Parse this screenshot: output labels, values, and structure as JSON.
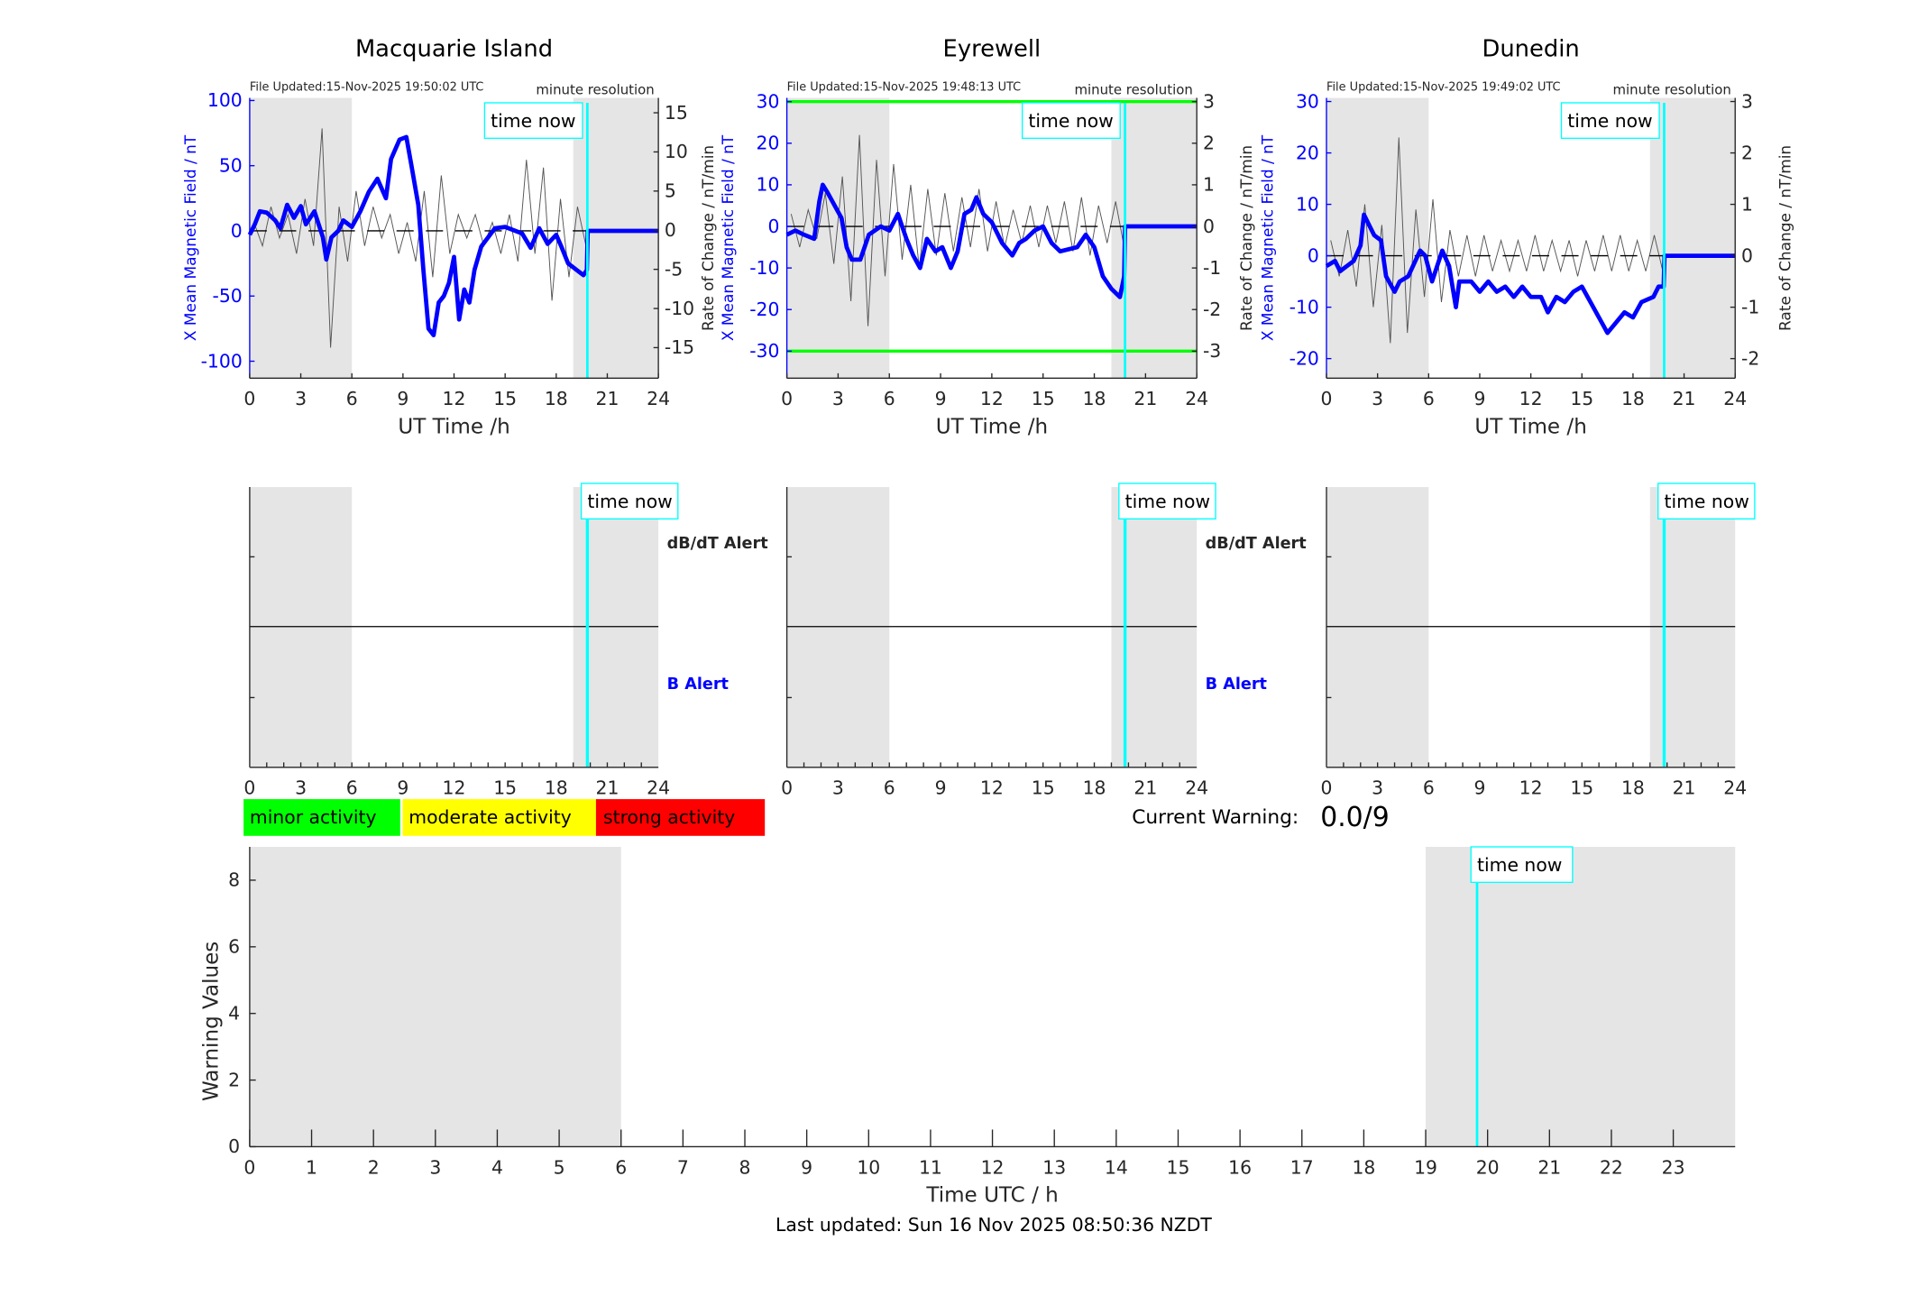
{
  "colors": {
    "field": "#0000ff",
    "rate": "#555555",
    "shade": "#e5e5e5",
    "time_now": "#00ffff",
    "threshold": "#00ff00"
  },
  "top_panels": [
    {
      "title": "Macquarie Island",
      "file_updated": "File Updated:15-Nov-2025 19:50:02 UTC",
      "resolution": "minute resolution",
      "time_now_label": "time now",
      "xlabel": "UT Time /h",
      "ylabel_left": "X Mean Magnetic Field / nT",
      "ylabel_right": "Rate of Change / nT/min",
      "xlim": [
        0,
        24
      ],
      "ylim_left": [
        -113,
        102
      ],
      "ylim_right": [
        -18.9,
        16.9
      ],
      "xticks": [
        "0",
        "3",
        "6",
        "9",
        "12",
        "15",
        "18",
        "21",
        "24"
      ],
      "yticks_left": [
        "-100",
        "-50",
        "0",
        "50",
        "100"
      ],
      "yticks_right": [
        "-15",
        "-10",
        "-5",
        "0",
        "5",
        "10",
        "15"
      ],
      "shaded_hours": [
        [
          0,
          6
        ],
        [
          19,
          24
        ]
      ],
      "time_now_hour": 19.83,
      "thresholds": [],
      "field_series": [
        [
          0,
          -3
        ],
        [
          0.3,
          5
        ],
        [
          0.6,
          15
        ],
        [
          1,
          14
        ],
        [
          1.5,
          8
        ],
        [
          1.8,
          2
        ],
        [
          2.2,
          20
        ],
        [
          2.6,
          10
        ],
        [
          3,
          19
        ],
        [
          3.3,
          5
        ],
        [
          3.8,
          15
        ],
        [
          4.3,
          -5
        ],
        [
          4.5,
          -22
        ],
        [
          4.8,
          -5
        ],
        [
          5.2,
          0
        ],
        [
          5.5,
          8
        ],
        [
          6,
          3
        ],
        [
          6.5,
          15
        ],
        [
          7,
          30
        ],
        [
          7.5,
          40
        ],
        [
          8,
          25
        ],
        [
          8.3,
          55
        ],
        [
          8.8,
          70
        ],
        [
          9.2,
          72
        ],
        [
          9.5,
          50
        ],
        [
          9.9,
          20
        ],
        [
          10.2,
          -30
        ],
        [
          10.5,
          -75
        ],
        [
          10.8,
          -80
        ],
        [
          11.1,
          -55
        ],
        [
          11.4,
          -50
        ],
        [
          11.7,
          -40
        ],
        [
          12,
          -20
        ],
        [
          12.3,
          -68
        ],
        [
          12.6,
          -45
        ],
        [
          12.9,
          -55
        ],
        [
          13.2,
          -30
        ],
        [
          13.6,
          -12
        ],
        [
          14,
          -5
        ],
        [
          14.4,
          2
        ],
        [
          15,
          3
        ],
        [
          16,
          -2
        ],
        [
          16.5,
          -13
        ],
        [
          17,
          2
        ],
        [
          17.5,
          -10
        ],
        [
          18,
          -3
        ],
        [
          18.3,
          -12
        ],
        [
          18.7,
          -25
        ],
        [
          19.2,
          -30
        ],
        [
          19.6,
          -34
        ],
        [
          19.8,
          -30
        ],
        [
          19.85,
          0
        ],
        [
          24,
          0
        ]
      ],
      "rate_series": [
        1,
        -2,
        3,
        -1,
        2,
        -3,
        4,
        -2,
        13,
        -15,
        3,
        -4,
        5,
        -2,
        3,
        -1,
        2,
        -3,
        1,
        -4,
        5,
        -6,
        7,
        -3,
        2,
        -1,
        2,
        -2,
        1,
        -3,
        2,
        -4,
        9,
        -3,
        8,
        -9,
        4,
        -6,
        3,
        -2
      ]
    },
    {
      "title": "Eyrewell",
      "file_updated": "File Updated:15-Nov-2025 19:48:13 UTC",
      "resolution": "minute resolution",
      "time_now_label": "time now",
      "xlabel": "UT Time /h",
      "ylabel_left": "X Mean Magnetic Field / nT",
      "ylabel_right": "Rate of Change / nT/min",
      "xlim": [
        0,
        24
      ],
      "ylim_left": [
        -36.5,
        30.9
      ],
      "ylim_right": [
        -3.65,
        3.09
      ],
      "xticks": [
        "0",
        "3",
        "6",
        "9",
        "12",
        "15",
        "18",
        "21",
        "24"
      ],
      "yticks_left": [
        "-30",
        "-20",
        "-10",
        "0",
        "10",
        "20",
        "30"
      ],
      "yticks_right": [
        "-3",
        "-2",
        "-1",
        "0",
        "1",
        "2",
        "3"
      ],
      "shaded_hours": [
        [
          0,
          6
        ],
        [
          19,
          24
        ]
      ],
      "time_now_hour": 19.8,
      "thresholds": [
        30,
        -30
      ],
      "field_series": [
        [
          0,
          -2
        ],
        [
          0.5,
          -1
        ],
        [
          1,
          -2
        ],
        [
          1.6,
          -3
        ],
        [
          1.9,
          6
        ],
        [
          2.1,
          10
        ],
        [
          2.4,
          8
        ],
        [
          2.8,
          5
        ],
        [
          3.2,
          2
        ],
        [
          3.5,
          -5
        ],
        [
          3.8,
          -8
        ],
        [
          4.3,
          -8
        ],
        [
          4.8,
          -2
        ],
        [
          5.5,
          0
        ],
        [
          6,
          -1
        ],
        [
          6.5,
          3
        ],
        [
          7,
          -3
        ],
        [
          7.4,
          -7
        ],
        [
          7.8,
          -10
        ],
        [
          8.2,
          -3
        ],
        [
          8.7,
          -6
        ],
        [
          9.1,
          -5
        ],
        [
          9.6,
          -10
        ],
        [
          10,
          -6
        ],
        [
          10.4,
          3
        ],
        [
          10.8,
          4
        ],
        [
          11.1,
          7
        ],
        [
          11.5,
          3
        ],
        [
          12,
          1
        ],
        [
          12.6,
          -4
        ],
        [
          13.2,
          -7
        ],
        [
          13.6,
          -4
        ],
        [
          14,
          -3
        ],
        [
          14.5,
          -1
        ],
        [
          15,
          0
        ],
        [
          15.5,
          -4
        ],
        [
          16,
          -6
        ],
        [
          17,
          -5
        ],
        [
          17.5,
          -2
        ],
        [
          18,
          -5
        ],
        [
          18.5,
          -12
        ],
        [
          19,
          -15
        ],
        [
          19.5,
          -17
        ],
        [
          19.75,
          -12
        ],
        [
          19.8,
          0
        ],
        [
          24,
          0
        ]
      ],
      "rate_series": [
        0.3,
        -0.5,
        0.4,
        -0.3,
        0.8,
        -0.9,
        1.2,
        -1.8,
        2.2,
        -2.4,
        1.6,
        -1.2,
        1.5,
        -0.8,
        1.0,
        -1.0,
        0.9,
        -0.7,
        0.8,
        -0.6,
        0.7,
        -0.5,
        0.9,
        -0.6,
        0.6,
        -0.5,
        0.4,
        -0.4,
        0.5,
        -0.5,
        0.5,
        -0.4,
        0.6,
        -0.6,
        0.7,
        -0.7,
        0.5,
        -0.4,
        0.6,
        -0.5
      ]
    },
    {
      "title": "Dunedin",
      "file_updated": "File Updated:15-Nov-2025 19:49:02 UTC",
      "resolution": "minute resolution",
      "time_now_label": "time now",
      "xlabel": "UT Time /h",
      "ylabel_left": "X Mean Magnetic Field / nT",
      "ylabel_right": "Rate of Change / nT/min",
      "xlim": [
        0,
        24
      ],
      "ylim_left": [
        -23.8,
        30.7
      ],
      "ylim_right": [
        -2.38,
        3.07
      ],
      "xticks": [
        "0",
        "3",
        "6",
        "9",
        "12",
        "15",
        "18",
        "21",
        "24"
      ],
      "yticks_left": [
        "-20",
        "-10",
        "0",
        "10",
        "20",
        "30"
      ],
      "yticks_right": [
        "-2",
        "-1",
        "0",
        "1",
        "2",
        "3"
      ],
      "shaded_hours": [
        [
          0,
          6
        ],
        [
          19,
          24
        ]
      ],
      "time_now_hour": 19.83,
      "thresholds": [],
      "field_series": [
        [
          0,
          -2
        ],
        [
          0.5,
          -1
        ],
        [
          0.8,
          -3
        ],
        [
          1.2,
          -2
        ],
        [
          1.6,
          -1
        ],
        [
          2,
          2
        ],
        [
          2.2,
          8
        ],
        [
          2.5,
          6
        ],
        [
          2.8,
          4
        ],
        [
          3.2,
          3
        ],
        [
          3.5,
          -4
        ],
        [
          4,
          -7
        ],
        [
          4.3,
          -5
        ],
        [
          4.8,
          -4
        ],
        [
          5.5,
          1
        ],
        [
          5.8,
          0
        ],
        [
          6.2,
          -5
        ],
        [
          6.8,
          1
        ],
        [
          7.2,
          -2
        ],
        [
          7.6,
          -10
        ],
        [
          7.8,
          -5
        ],
        [
          8.5,
          -5
        ],
        [
          9,
          -7
        ],
        [
          9.5,
          -5
        ],
        [
          10,
          -7
        ],
        [
          10.5,
          -6
        ],
        [
          11,
          -8
        ],
        [
          11.5,
          -6
        ],
        [
          12,
          -8
        ],
        [
          12.6,
          -8
        ],
        [
          13,
          -11
        ],
        [
          13.5,
          -8
        ],
        [
          14,
          -9
        ],
        [
          14.5,
          -7
        ],
        [
          15,
          -6
        ],
        [
          15.5,
          -9
        ],
        [
          16,
          -12
        ],
        [
          16.5,
          -15
        ],
        [
          17,
          -13
        ],
        [
          17.5,
          -11
        ],
        [
          18,
          -12
        ],
        [
          18.5,
          -9
        ],
        [
          19.2,
          -8
        ],
        [
          19.5,
          -6
        ],
        [
          19.8,
          -6
        ],
        [
          19.85,
          0
        ],
        [
          24,
          0
        ]
      ],
      "rate_series": [
        0.3,
        -0.4,
        0.5,
        -0.6,
        1.0,
        -1.0,
        0.6,
        -1.7,
        2.3,
        -1.5,
        0.9,
        -0.8,
        1.1,
        -0.9,
        0.5,
        -0.4,
        0.4,
        -0.4,
        0.4,
        -0.3,
        0.3,
        -0.3,
        0.3,
        -0.3,
        0.4,
        -0.3,
        0.3,
        -0.3,
        0.3,
        -0.4,
        0.3,
        -0.3,
        0.4,
        -0.3,
        0.4,
        -0.3,
        0.3,
        -0.3,
        0.4,
        -0.3
      ]
    }
  ],
  "alert_panels": [
    {
      "time_now_label": "time now",
      "dbdt_label": "dB/dT Alert",
      "b_label": "B Alert",
      "xticks": [
        "0",
        "3",
        "6",
        "9",
        "12",
        "15",
        "18",
        "21",
        "24"
      ],
      "time_now_hour": 19.83
    },
    {
      "time_now_label": "time now",
      "dbdt_label": "dB/dT Alert",
      "b_label": "B Alert",
      "xticks": [
        "0",
        "3",
        "6",
        "9",
        "12",
        "15",
        "18",
        "21",
        "24"
      ],
      "time_now_hour": 19.8
    },
    {
      "time_now_label": "time now",
      "xticks": [
        "0",
        "3",
        "6",
        "9",
        "12",
        "15",
        "18",
        "21",
        "24"
      ],
      "time_now_hour": 19.83
    }
  ],
  "legend": [
    {
      "label": "minor activity",
      "color": "#00ff00"
    },
    {
      "label": "moderate activity",
      "color": "#ffff00"
    },
    {
      "label": "strong activity",
      "color": "#ff0000"
    }
  ],
  "current_warning": {
    "label": "Current Warning:",
    "value": "0.0/9"
  },
  "chart_data": {
    "type": "line",
    "ylabel": "Warning Values",
    "xlabel": "Time UTC / h",
    "xlim": [
      0,
      24
    ],
    "ylim": [
      0,
      9
    ],
    "xticks": [
      "0",
      "1",
      "2",
      "3",
      "4",
      "5",
      "6",
      "7",
      "8",
      "9",
      "10",
      "11",
      "12",
      "13",
      "14",
      "15",
      "16",
      "17",
      "18",
      "19",
      "20",
      "21",
      "22",
      "23"
    ],
    "yticks": [
      "0",
      "2",
      "4",
      "6",
      "8"
    ],
    "shaded_hours": [
      [
        0,
        6
      ],
      [
        19,
        24
      ]
    ],
    "time_now_hour": 19.83,
    "time_now_label": "time now",
    "values": []
  },
  "footer": "Last updated: Sun 16 Nov 2025 08:50:36 NZDT"
}
